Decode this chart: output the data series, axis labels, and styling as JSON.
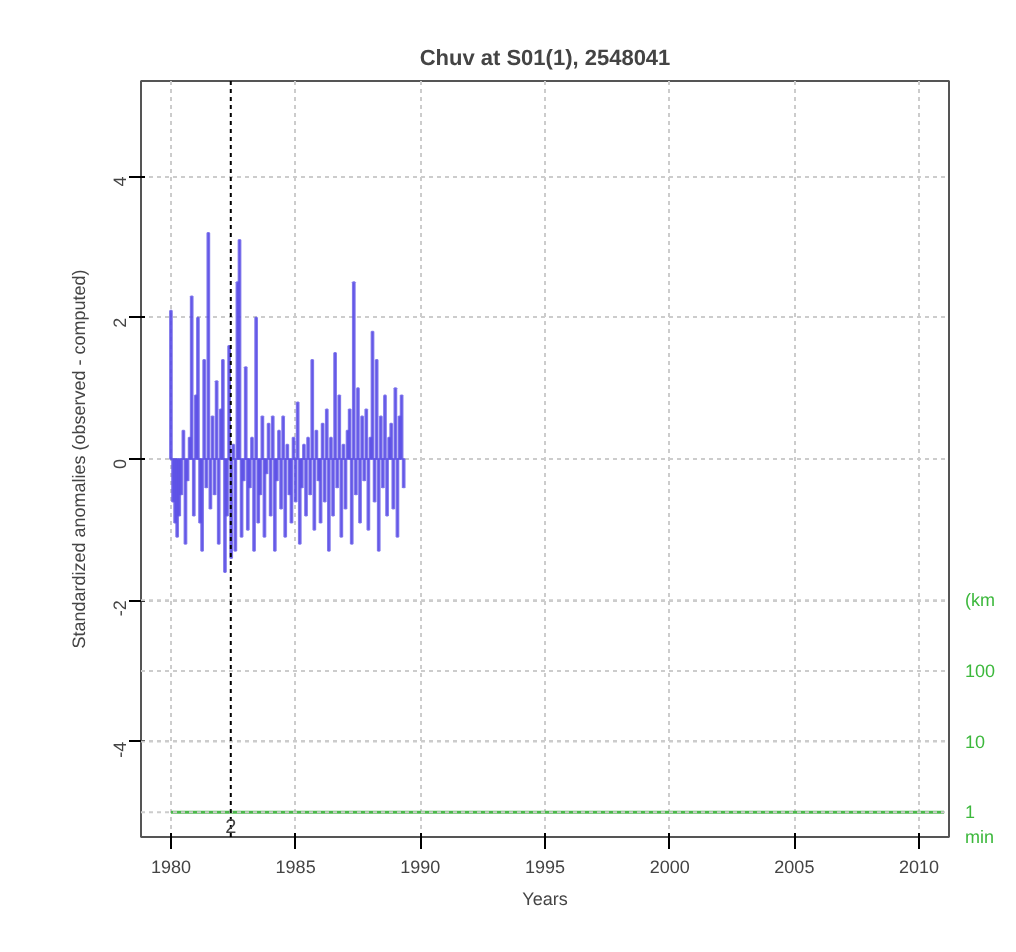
{
  "chart_data": {
    "type": "bar",
    "title": "Chuv at S01(1), 2548041",
    "xlabel": "Years",
    "ylabel": "Standardized anomalies (observed - computed)",
    "xlim": [
      1978.8,
      2011.2
    ],
    "xticks": [
      1980,
      1985,
      1990,
      1995,
      2000,
      2005,
      2010
    ],
    "ylim": [
      -5.35,
      5.35
    ],
    "yticks": [
      -4,
      -2,
      0,
      2,
      4
    ],
    "log": "y2",
    "y2lim": [
      0.4467,
      22400000000
    ],
    "y2ticks": [
      {
        "value": 1000,
        "label": "(km"
      },
      100,
      10,
      1,
      {
        "value": 0.4467,
        "label": "min"
      }
    ],
    "grid": true,
    "ref_lines": [
      {
        "axis": "x",
        "value": 1982.4,
        "color": "#000000",
        "line_style": "dotted"
      }
    ],
    "annotations": [
      {
        "text": "2",
        "x": 1982.4,
        "y": -5.2
      }
    ],
    "series": [
      {
        "color": "#5a4ee6",
        "x": [
          1980,
          1980.083,
          1980.167,
          1980.25,
          1980.333,
          1980.417,
          1980.5,
          1980.583,
          1980.667,
          1980.75,
          1980.833,
          1980.917,
          1981,
          1981.083,
          1981.167,
          1981.25,
          1981.333,
          1981.417,
          1981.5,
          1981.583,
          1981.667,
          1981.75,
          1981.833,
          1981.917,
          1982,
          1982.083,
          1982.167,
          1982.25,
          1982.333,
          1982.417,
          1982.5,
          1982.583,
          1982.667,
          1982.75,
          1982.833,
          1982.917,
          1983,
          1983.083,
          1983.167,
          1983.25,
          1983.333,
          1983.417,
          1983.5,
          1983.583,
          1983.667,
          1983.75,
          1983.833,
          1983.917,
          1984,
          1984.083,
          1984.167,
          1984.25,
          1984.333,
          1984.417,
          1984.5,
          1984.583,
          1984.667,
          1984.75,
          1984.833,
          1984.917,
          1985,
          1985.083,
          1985.167,
          1985.25,
          1985.333,
          1985.417,
          1985.5,
          1985.583,
          1985.667,
          1985.75,
          1985.833,
          1985.917,
          1986,
          1986.083,
          1986.167,
          1986.25,
          1986.333,
          1986.417,
          1986.5,
          1986.583,
          1986.667,
          1986.75,
          1986.833,
          1986.917,
          1987,
          1987.083,
          1987.167,
          1987.25,
          1987.333,
          1987.417,
          1987.5,
          1987.583,
          1987.667,
          1987.75,
          1987.833,
          1987.917,
          1988,
          1988.083,
          1988.167,
          1988.25,
          1988.333,
          1988.417,
          1988.5,
          1988.583,
          1988.667,
          1988.75,
          1988.833,
          1988.917,
          1989,
          1989.083,
          1989.167,
          1989.25,
          1989.333
        ],
        "values": [
          2.1,
          -0.6,
          -0.9,
          -1.1,
          -0.8,
          -0.5,
          0.4,
          -1.2,
          -0.3,
          0.3,
          2.3,
          -0.8,
          0.9,
          2.0,
          -0.9,
          -1.3,
          1.4,
          -0.4,
          3.2,
          -0.7,
          0.6,
          -0.5,
          1.1,
          -1.2,
          0.7,
          1.4,
          -1.6,
          -0.8,
          1.6,
          -1.4,
          0.2,
          -1.3,
          2.5,
          3.1,
          -1.1,
          -0.3,
          1.3,
          -1.0,
          -0.4,
          0.3,
          -1.3,
          2.0,
          -0.9,
          -0.5,
          0.6,
          -1.1,
          -0.2,
          0.5,
          -0.8,
          0.6,
          -1.3,
          -0.3,
          0.4,
          -0.7,
          0.6,
          -1.1,
          0.2,
          -0.5,
          -0.9,
          0.3,
          -0.6,
          0.8,
          -1.2,
          -0.4,
          0.2,
          -0.8,
          0.3,
          -0.5,
          1.4,
          -1.0,
          0.4,
          -0.3,
          -0.9,
          0.5,
          -0.6,
          0.7,
          -1.3,
          0.3,
          -0.8,
          1.5,
          -0.4,
          0.9,
          -1.1,
          0.2,
          -0.7,
          0.4,
          0.7,
          -1.2,
          2.5,
          -0.5,
          1.0,
          -0.9,
          0.6,
          -0.3,
          0.7,
          -1.0,
          0.3,
          1.8,
          -0.6,
          1.4,
          -1.3,
          0.6,
          -0.4,
          0.9,
          -0.8,
          0.3,
          0.5,
          -0.7,
          1.0,
          -1.1,
          0.6,
          0.9,
          -0.4
        ]
      },
      {
        "color": "#4cb84c",
        "type": "line",
        "axis": "y2",
        "x": [
          1980,
          2011
        ],
        "values": [
          1,
          1
        ]
      }
    ]
  }
}
